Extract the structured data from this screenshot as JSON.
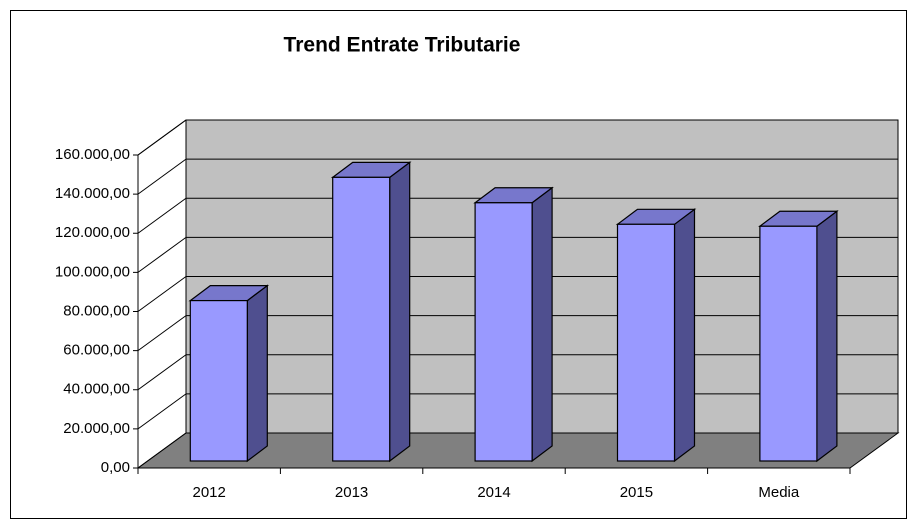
{
  "chart_data": {
    "type": "bar3d",
    "title": "Trend Entrate Tributarie",
    "categories": [
      "2012",
      "2013",
      "2014",
      "2015",
      "Media"
    ],
    "values": [
      82000,
      145000,
      132000,
      121000,
      120000
    ],
    "color": "#9999ff",
    "ylim": [
      0,
      160000
    ],
    "yticks": [
      {
        "value": 0,
        "label": "0,00"
      },
      {
        "value": 20000,
        "label": "20.000,00"
      },
      {
        "value": 40000,
        "label": "40.000,00"
      },
      {
        "value": 60000,
        "label": "60.000,00"
      },
      {
        "value": 80000,
        "label": "80.000,00"
      },
      {
        "value": 100000,
        "label": "100.000,00"
      },
      {
        "value": 120000,
        "label": "120.000,00"
      },
      {
        "value": 140000,
        "label": "140.000,00"
      },
      {
        "value": 160000,
        "label": "160.000,00"
      }
    ],
    "grid": true
  }
}
